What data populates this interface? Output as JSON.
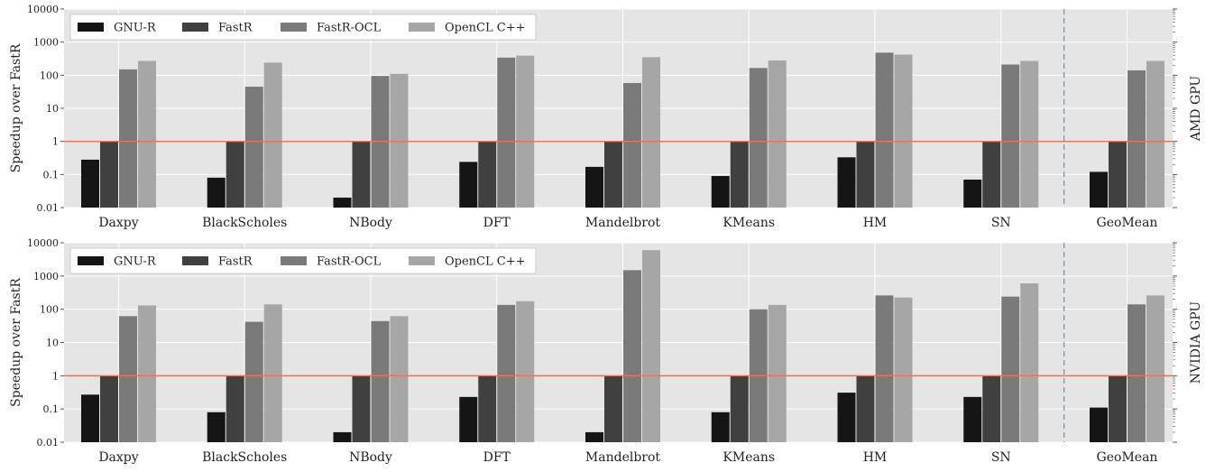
{
  "colors": {
    "plot_bg": "#e5e5e5",
    "grid": "#ffffff",
    "baseline": "#e8735a",
    "separator": "#4a9ad4",
    "legend_bg": "#ffffff",
    "series": [
      "#151515",
      "#404040",
      "#7a7a7a",
      "#a6a6a6"
    ]
  },
  "chart_data": [
    {
      "type": "bar",
      "scale": "log",
      "ylim": [
        0.01,
        10000
      ],
      "yticks": [
        "0.01",
        "0.1",
        "1",
        "10",
        "100",
        "1000",
        "10000"
      ],
      "ylabel": "Speedup over FastR",
      "side_label": "AMD GPU",
      "legend_position": "top-left",
      "reference_line": 1,
      "separator_before_last": true,
      "grid": true,
      "categories": [
        "Daxpy",
        "BlackScholes",
        "NBody",
        "DFT",
        "Mandelbrot",
        "KMeans",
        "HM",
        "SN",
        "GeoMean"
      ],
      "series": [
        {
          "name": "GNU-R",
          "values": [
            0.28,
            0.08,
            0.02,
            0.24,
            0.17,
            0.09,
            0.33,
            0.07,
            0.12
          ]
        },
        {
          "name": "FastR",
          "values": [
            1,
            1,
            1,
            1,
            1,
            1,
            1,
            1,
            1
          ]
        },
        {
          "name": "FastR-OCL",
          "values": [
            150,
            45,
            95,
            340,
            58,
            165,
            480,
            210,
            140
          ]
        },
        {
          "name": "OpenCL C++",
          "values": [
            270,
            240,
            110,
            390,
            350,
            280,
            420,
            270,
            270
          ]
        }
      ]
    },
    {
      "type": "bar",
      "scale": "log",
      "ylim": [
        0.01,
        10000
      ],
      "yticks": [
        "0.01",
        "0.1",
        "1",
        "10",
        "100",
        "1000",
        "10000"
      ],
      "ylabel": "Speedup over FastR",
      "side_label": "NVIDIA GPU",
      "legend_position": "top-left",
      "reference_line": 1,
      "separator_before_last": true,
      "grid": true,
      "categories": [
        "Daxpy",
        "BlackScholes",
        "NBody",
        "DFT",
        "Mandelbrot",
        "KMeans",
        "HM",
        "SN",
        "GeoMean"
      ],
      "series": [
        {
          "name": "GNU-R",
          "values": [
            0.27,
            0.08,
            0.02,
            0.23,
            0.02,
            0.08,
            0.31,
            0.23,
            0.11
          ]
        },
        {
          "name": "FastR",
          "values": [
            1,
            1,
            1,
            1,
            1,
            1,
            1,
            1,
            1
          ]
        },
        {
          "name": "FastR-OCL",
          "values": [
            62,
            42,
            44,
            135,
            1500,
            100,
            260,
            240,
            140
          ]
        },
        {
          "name": "OpenCL C++",
          "values": [
            130,
            140,
            62,
            175,
            6000,
            135,
            225,
            600,
            260
          ]
        }
      ]
    }
  ]
}
